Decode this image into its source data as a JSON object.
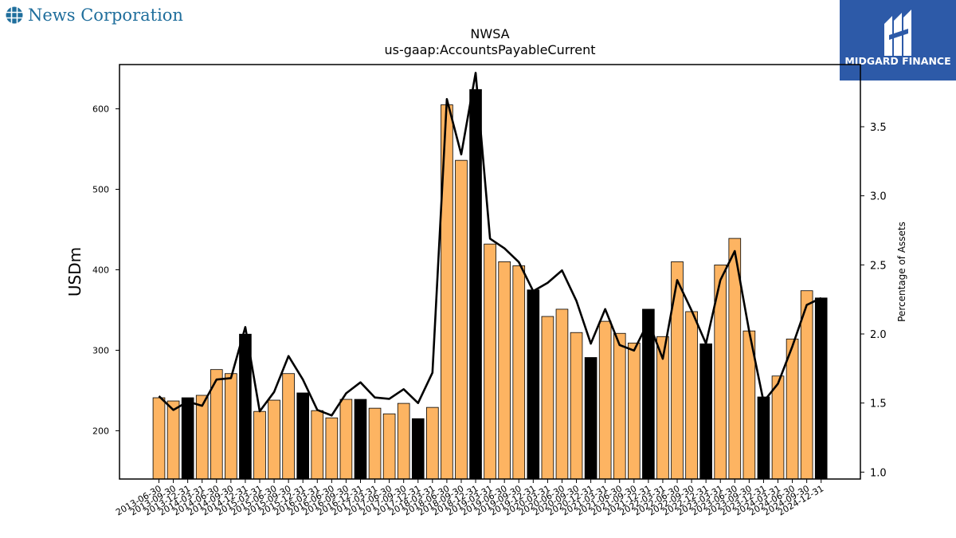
{
  "brand": {
    "left_logo_text": "News Corporation",
    "right_logo_text": "MIDGARD FINANCE"
  },
  "colors": {
    "bar_default": "#fdb462",
    "bar_highlight": "#000000",
    "line": "#000000",
    "brand_left": "#1f6e9c",
    "brand_right": "#2d5aa8"
  },
  "chart_data": {
    "type": "bar",
    "title": "NWSA",
    "subtitle": "us-gaap:AccountsPayableCurrent",
    "ylabel": "USDm",
    "y2label": "Percentage of Assets",
    "ylim": [
      140,
      655
    ],
    "y2lim": [
      0.95,
      3.95
    ],
    "yticks": [
      200,
      300,
      400,
      500,
      600
    ],
    "y2ticks": [
      1.0,
      1.5,
      2.0,
      2.5,
      3.0,
      3.5
    ],
    "categories": [
      "2013-06-30",
      "2013-09-30",
      "2013-12-31",
      "2014-03-31",
      "2014-06-30",
      "2014-09-30",
      "2014-12-31",
      "2015-03-31",
      "2015-06-30",
      "2015-09-30",
      "2015-12-31",
      "2016-03-31",
      "2016-06-30",
      "2016-09-30",
      "2016-12-31",
      "2017-03-31",
      "2017-06-30",
      "2017-09-30",
      "2017-12-31",
      "2018-03-31",
      "2018-06-30",
      "2018-09-30",
      "2018-12-31",
      "2019-03-31",
      "2019-06-30",
      "2019-09-30",
      "2019-12-31",
      "2020-03-31",
      "2020-06-30",
      "2020-09-30",
      "2020-12-31",
      "2021-03-31",
      "2021-06-30",
      "2021-09-30",
      "2021-12-31",
      "2022-03-31",
      "2022-06-30",
      "2022-09-30",
      "2022-12-31",
      "2023-03-31",
      "2023-06-30",
      "2023-09-30",
      "2023-12-31",
      "2024-03-31",
      "2024-06-30",
      "2024-09-30",
      "2024-12-31"
    ],
    "series": [
      {
        "type": "bar",
        "axis": "left",
        "values": [
          241,
          237,
          241,
          244,
          276,
          271,
          320,
          224,
          238,
          271,
          247,
          225,
          216,
          239,
          239,
          228,
          221,
          234,
          215,
          229,
          605,
          536,
          624,
          432,
          410,
          405,
          375,
          342,
          351,
          322,
          291,
          336,
          321,
          309,
          351,
          317,
          410,
          348,
          308,
          406,
          439,
          324,
          242,
          268,
          314,
          374,
          365
        ],
        "highlight": [
          false,
          false,
          true,
          false,
          false,
          false,
          true,
          false,
          false,
          false,
          true,
          false,
          false,
          false,
          true,
          false,
          false,
          false,
          true,
          false,
          false,
          false,
          true,
          false,
          false,
          false,
          true,
          false,
          false,
          false,
          true,
          false,
          false,
          false,
          true,
          false,
          false,
          false,
          true,
          false,
          false,
          false,
          true,
          false,
          false,
          false,
          true
        ]
      },
      {
        "type": "line",
        "axis": "right",
        "values": [
          1.55,
          1.45,
          1.51,
          1.48,
          1.67,
          1.68,
          2.05,
          1.44,
          1.58,
          1.84,
          1.67,
          1.45,
          1.41,
          1.57,
          1.65,
          1.54,
          1.53,
          1.6,
          1.5,
          1.72,
          3.7,
          3.3,
          3.89,
          2.69,
          2.62,
          2.52,
          2.31,
          2.37,
          2.46,
          2.24,
          1.93,
          2.18,
          1.92,
          1.88,
          2.09,
          1.82,
          2.39,
          2.17,
          1.93,
          2.39,
          2.6,
          2.02,
          1.51,
          1.64,
          1.91,
          2.21,
          2.26
        ]
      }
    ]
  }
}
